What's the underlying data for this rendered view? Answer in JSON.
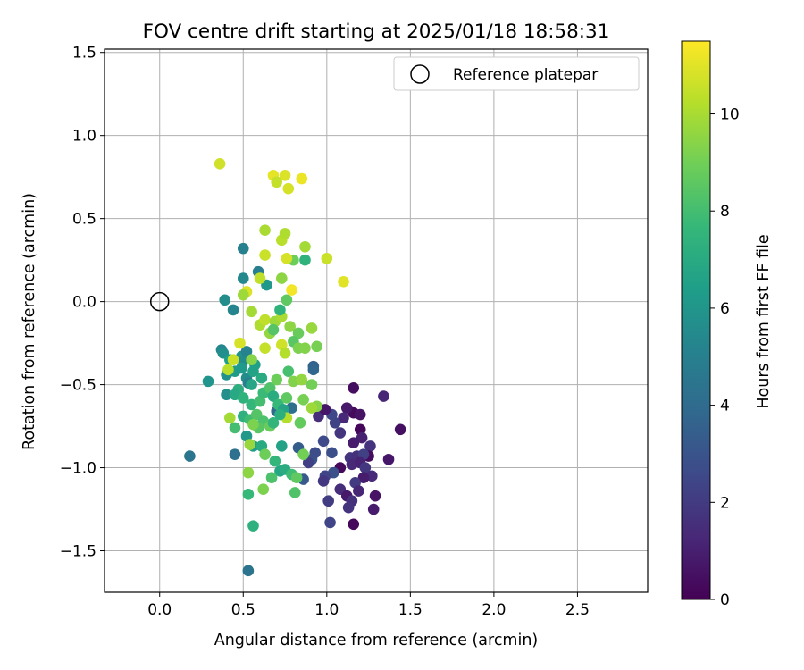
{
  "chart_data": {
    "type": "scatter",
    "title": "FOV centre drift starting at 2025/01/18 18:58:31",
    "xlabel": "Angular distance from reference (arcmin)",
    "ylabel": "Rotation from reference (arcmin)",
    "xlim": [
      -0.33,
      2.92
    ],
    "ylim": [
      -1.75,
      1.52
    ],
    "xticks": [
      0.0,
      0.5,
      1.0,
      1.5,
      2.0,
      2.5
    ],
    "xtick_labels": [
      "0.0",
      "0.5",
      "1.0",
      "1.5",
      "2.0",
      "2.5"
    ],
    "yticks": [
      -1.5,
      -1.0,
      -0.5,
      0.0,
      0.5,
      1.0,
      1.5
    ],
    "ytick_labels": [
      "−1.5",
      "−1.0",
      "−0.5",
      "0.0",
      "0.5",
      "1.0",
      "1.5"
    ],
    "grid": true,
    "legend": {
      "location": "upper right",
      "entries": [
        "Reference platepar"
      ]
    },
    "reference_point": {
      "x": 0.0,
      "y": 0.0,
      "label": "Reference platepar",
      "marker": "open circle"
    },
    "colorbar": {
      "label": "Hours from first FF file",
      "range": [
        0,
        11.5
      ],
      "ticks": [
        0,
        2,
        4,
        6,
        8,
        10
      ],
      "tick_labels": [
        "0",
        "2",
        "4",
        "6",
        "8",
        "10"
      ],
      "colormap": "viridis"
    },
    "points": [
      {
        "x": 1.16,
        "y": -0.52,
        "h": 0.4
      },
      {
        "x": 1.34,
        "y": -0.57,
        "h": 1.2
      },
      {
        "x": 1.44,
        "y": -0.77,
        "h": 0.5
      },
      {
        "x": 1.37,
        "y": -0.95,
        "h": 0.7
      },
      {
        "x": 1.16,
        "y": -0.67,
        "h": 0.3
      },
      {
        "x": 1.2,
        "y": -0.68,
        "h": 0.6
      },
      {
        "x": 1.12,
        "y": -0.64,
        "h": 0.8
      },
      {
        "x": 1.2,
        "y": -0.77,
        "h": 0.2
      },
      {
        "x": 1.21,
        "y": -0.82,
        "h": 1.0
      },
      {
        "x": 1.16,
        "y": -0.85,
        "h": 0.9
      },
      {
        "x": 1.26,
        "y": -0.87,
        "h": 1.7
      },
      {
        "x": 1.25,
        "y": -0.93,
        "h": 0.4
      },
      {
        "x": 1.14,
        "y": -0.94,
        "h": 1.8
      },
      {
        "x": 1.18,
        "y": -0.93,
        "h": 1.6
      },
      {
        "x": 1.22,
        "y": -0.92,
        "h": 2.2
      },
      {
        "x": 1.15,
        "y": -0.98,
        "h": 1.3
      },
      {
        "x": 1.2,
        "y": -0.97,
        "h": 1.1
      },
      {
        "x": 1.23,
        "y": -1.0,
        "h": 1.9
      },
      {
        "x": 1.08,
        "y": -1.0,
        "h": 0.3
      },
      {
        "x": 1.27,
        "y": -1.05,
        "h": 1.4
      },
      {
        "x": 1.22,
        "y": -1.06,
        "h": 0.9
      },
      {
        "x": 1.17,
        "y": -1.09,
        "h": 2.0
      },
      {
        "x": 1.08,
        "y": -1.13,
        "h": 1.5
      },
      {
        "x": 1.19,
        "y": -1.14,
        "h": 1.2
      },
      {
        "x": 1.12,
        "y": -1.17,
        "h": 0.8
      },
      {
        "x": 1.29,
        "y": -1.17,
        "h": 0.6
      },
      {
        "x": 1.15,
        "y": -1.2,
        "h": 1.6
      },
      {
        "x": 1.01,
        "y": -1.2,
        "h": 2.1
      },
      {
        "x": 1.13,
        "y": -1.24,
        "h": 1.7
      },
      {
        "x": 1.28,
        "y": -1.25,
        "h": 0.9
      },
      {
        "x": 1.16,
        "y": -1.34,
        "h": 0.2
      },
      {
        "x": 1.02,
        "y": -1.33,
        "h": 2.4
      },
      {
        "x": 1.1,
        "y": -0.7,
        "h": 1.3
      },
      {
        "x": 1.05,
        "y": -0.73,
        "h": 2.3
      },
      {
        "x": 1.03,
        "y": -0.68,
        "h": 2.5
      },
      {
        "x": 1.08,
        "y": -0.79,
        "h": 1.8
      },
      {
        "x": 0.95,
        "y": -0.69,
        "h": 1.5
      },
      {
        "x": 0.99,
        "y": -0.65,
        "h": 0.7
      },
      {
        "x": 0.98,
        "y": -0.84,
        "h": 2.6
      },
      {
        "x": 1.03,
        "y": -0.91,
        "h": 2.8
      },
      {
        "x": 0.91,
        "y": -0.95,
        "h": 3.0
      },
      {
        "x": 0.89,
        "y": -0.97,
        "h": 2.2
      },
      {
        "x": 1.04,
        "y": -1.03,
        "h": 2.9
      },
      {
        "x": 0.99,
        "y": -1.05,
        "h": 2.4
      },
      {
        "x": 0.98,
        "y": -1.08,
        "h": 1.9
      },
      {
        "x": 0.86,
        "y": -1.07,
        "h": 3.2
      },
      {
        "x": 0.83,
        "y": -0.88,
        "h": 3.4
      },
      {
        "x": 0.93,
        "y": -0.91,
        "h": 2.7
      },
      {
        "x": 0.92,
        "y": -0.39,
        "h": 3.6
      },
      {
        "x": 0.92,
        "y": -0.41,
        "h": 3.8
      },
      {
        "x": 0.79,
        "y": -0.64,
        "h": 4.2
      },
      {
        "x": 0.7,
        "y": -0.66,
        "h": 3.9
      },
      {
        "x": 0.18,
        "y": -0.93,
        "h": 4.5
      },
      {
        "x": 0.53,
        "y": -1.62,
        "h": 4.4
      },
      {
        "x": 0.45,
        "y": -0.92,
        "h": 4.3
      },
      {
        "x": 0.5,
        "y": 0.32,
        "h": 5.0
      },
      {
        "x": 0.5,
        "y": 0.14,
        "h": 5.4
      },
      {
        "x": 0.59,
        "y": 0.18,
        "h": 4.9
      },
      {
        "x": 0.64,
        "y": 0.1,
        "h": 6.1
      },
      {
        "x": 0.39,
        "y": 0.01,
        "h": 5.6
      },
      {
        "x": 0.44,
        "y": -0.05,
        "h": 5.2
      },
      {
        "x": 0.37,
        "y": -0.29,
        "h": 5.3
      },
      {
        "x": 0.38,
        "y": -0.31,
        "h": 5.7
      },
      {
        "x": 0.42,
        "y": -0.35,
        "h": 6.4
      },
      {
        "x": 0.49,
        "y": -0.33,
        "h": 5.9
      },
      {
        "x": 0.5,
        "y": -0.36,
        "h": 5.5
      },
      {
        "x": 0.52,
        "y": -0.3,
        "h": 5.1
      },
      {
        "x": 0.29,
        "y": -0.48,
        "h": 6.0
      },
      {
        "x": 0.4,
        "y": -0.44,
        "h": 5.8
      },
      {
        "x": 0.45,
        "y": -0.42,
        "h": 6.3
      },
      {
        "x": 0.49,
        "y": -0.4,
        "h": 6.2
      },
      {
        "x": 0.52,
        "y": -0.46,
        "h": 5.6
      },
      {
        "x": 0.53,
        "y": -0.49,
        "h": 5.0
      },
      {
        "x": 0.56,
        "y": -0.42,
        "h": 6.6
      },
      {
        "x": 0.55,
        "y": -0.5,
        "h": 6.8
      },
      {
        "x": 0.61,
        "y": -0.46,
        "h": 7.0
      },
      {
        "x": 0.57,
        "y": -0.38,
        "h": 6.5
      },
      {
        "x": 0.47,
        "y": -0.53,
        "h": 7.2
      },
      {
        "x": 0.4,
        "y": -0.56,
        "h": 5.7
      },
      {
        "x": 0.45,
        "y": -0.56,
        "h": 6.9
      },
      {
        "x": 0.5,
        "y": -0.58,
        "h": 7.4
      },
      {
        "x": 0.55,
        "y": -0.62,
        "h": 7.6
      },
      {
        "x": 0.6,
        "y": -0.6,
        "h": 8.0
      },
      {
        "x": 0.62,
        "y": -0.55,
        "h": 7.8
      },
      {
        "x": 0.66,
        "y": -0.52,
        "h": 8.3
      },
      {
        "x": 0.68,
        "y": -0.57,
        "h": 7.1
      },
      {
        "x": 0.71,
        "y": -0.62,
        "h": 7.7
      },
      {
        "x": 0.74,
        "y": -0.65,
        "h": 6.7
      },
      {
        "x": 0.76,
        "y": -0.58,
        "h": 8.6
      },
      {
        "x": 0.7,
        "y": -0.47,
        "h": 8.9
      },
      {
        "x": 0.77,
        "y": -0.42,
        "h": 8.1
      },
      {
        "x": 0.8,
        "y": -0.48,
        "h": 9.3
      },
      {
        "x": 0.85,
        "y": -0.47,
        "h": 9.6
      },
      {
        "x": 0.91,
        "y": -0.5,
        "h": 9.0
      },
      {
        "x": 0.94,
        "y": -0.63,
        "h": 9.4
      },
      {
        "x": 0.91,
        "y": -0.64,
        "h": 9.8
      },
      {
        "x": 0.86,
        "y": -0.59,
        "h": 9.1
      },
      {
        "x": 0.84,
        "y": -0.73,
        "h": 8.7
      },
      {
        "x": 0.76,
        "y": -0.7,
        "h": 10.2
      },
      {
        "x": 0.5,
        "y": -0.69,
        "h": 7.3
      },
      {
        "x": 0.54,
        "y": -0.71,
        "h": 7.9
      },
      {
        "x": 0.58,
        "y": -0.68,
        "h": 8.4
      },
      {
        "x": 0.62,
        "y": -0.72,
        "h": 8.2
      },
      {
        "x": 0.66,
        "y": -0.75,
        "h": 8.8
      },
      {
        "x": 0.68,
        "y": -0.73,
        "h": 7.5
      },
      {
        "x": 0.72,
        "y": -0.68,
        "h": 7.2
      },
      {
        "x": 0.59,
        "y": -0.76,
        "h": 8.5
      },
      {
        "x": 0.56,
        "y": -0.74,
        "h": 9.2
      },
      {
        "x": 0.52,
        "y": -0.81,
        "h": 6.1
      },
      {
        "x": 0.56,
        "y": -0.87,
        "h": 6.4
      },
      {
        "x": 0.61,
        "y": -0.87,
        "h": 7.0
      },
      {
        "x": 0.63,
        "y": -0.92,
        "h": 8.9
      },
      {
        "x": 0.73,
        "y": -0.87,
        "h": 6.6
      },
      {
        "x": 0.69,
        "y": -0.96,
        "h": 7.6
      },
      {
        "x": 0.72,
        "y": -1.02,
        "h": 6.8
      },
      {
        "x": 0.75,
        "y": -1.01,
        "h": 7.1
      },
      {
        "x": 0.79,
        "y": -1.04,
        "h": 7.9
      },
      {
        "x": 0.82,
        "y": -1.06,
        "h": 8.6
      },
      {
        "x": 0.86,
        "y": -0.92,
        "h": 9.0
      },
      {
        "x": 0.67,
        "y": -1.06,
        "h": 8.2
      },
      {
        "x": 0.53,
        "y": -1.03,
        "h": 9.5
      },
      {
        "x": 0.62,
        "y": -1.13,
        "h": 9.2
      },
      {
        "x": 0.53,
        "y": -1.16,
        "h": 7.7
      },
      {
        "x": 0.81,
        "y": -1.15,
        "h": 8.3
      },
      {
        "x": 0.56,
        "y": -1.35,
        "h": 7.3
      },
      {
        "x": 0.54,
        "y": -0.86,
        "h": 9.7
      },
      {
        "x": 0.45,
        "y": -0.76,
        "h": 8.0
      },
      {
        "x": 0.42,
        "y": -0.7,
        "h": 9.9
      },
      {
        "x": 0.41,
        "y": -0.41,
        "h": 10.3
      },
      {
        "x": 0.44,
        "y": -0.35,
        "h": 10.6
      },
      {
        "x": 0.48,
        "y": -0.25,
        "h": 10.8
      },
      {
        "x": 0.55,
        "y": -0.35,
        "h": 9.4
      },
      {
        "x": 0.63,
        "y": -0.28,
        "h": 10.5
      },
      {
        "x": 0.66,
        "y": -0.19,
        "h": 9.6
      },
      {
        "x": 0.6,
        "y": -0.14,
        "h": 10.1
      },
      {
        "x": 0.63,
        "y": -0.11,
        "h": 10.4
      },
      {
        "x": 0.69,
        "y": -0.12,
        "h": 9.8
      },
      {
        "x": 0.73,
        "y": -0.09,
        "h": 10.0
      },
      {
        "x": 0.68,
        "y": -0.17,
        "h": 8.4
      },
      {
        "x": 0.72,
        "y": -0.05,
        "h": 7.4
      },
      {
        "x": 0.78,
        "y": -0.15,
        "h": 9.5
      },
      {
        "x": 0.83,
        "y": -0.19,
        "h": 8.8
      },
      {
        "x": 0.8,
        "y": -0.24,
        "h": 8.5
      },
      {
        "x": 0.83,
        "y": -0.28,
        "h": 9.2
      },
      {
        "x": 0.87,
        "y": -0.28,
        "h": 9.3
      },
      {
        "x": 0.73,
        "y": -0.26,
        "h": 10.7
      },
      {
        "x": 0.75,
        "y": -0.31,
        "h": 10.2
      },
      {
        "x": 0.91,
        "y": -0.16,
        "h": 9.7
      },
      {
        "x": 0.94,
        "y": -0.27,
        "h": 9.1
      },
      {
        "x": 0.55,
        "y": -0.06,
        "h": 9.9
      },
      {
        "x": 0.76,
        "y": 0.01,
        "h": 8.6
      },
      {
        "x": 0.73,
        "y": 0.14,
        "h": 9.5
      },
      {
        "x": 0.79,
        "y": 0.07,
        "h": 11.3
      },
      {
        "x": 0.8,
        "y": 0.25,
        "h": 8.9
      },
      {
        "x": 0.87,
        "y": 0.25,
        "h": 7.4
      },
      {
        "x": 0.6,
        "y": 0.14,
        "h": 10.4
      },
      {
        "x": 0.52,
        "y": 0.06,
        "h": 10.9
      },
      {
        "x": 0.5,
        "y": 0.04,
        "h": 9.8
      },
      {
        "x": 0.63,
        "y": 0.28,
        "h": 10.6
      },
      {
        "x": 0.76,
        "y": 0.26,
        "h": 10.8
      },
      {
        "x": 0.73,
        "y": 0.37,
        "h": 10.3
      },
      {
        "x": 0.75,
        "y": 0.41,
        "h": 10.1
      },
      {
        "x": 0.63,
        "y": 0.43,
        "h": 10.0
      },
      {
        "x": 0.87,
        "y": 0.33,
        "h": 9.9
      },
      {
        "x": 1.0,
        "y": 0.26,
        "h": 10.6
      },
      {
        "x": 1.1,
        "y": 0.12,
        "h": 11.0
      },
      {
        "x": 0.36,
        "y": 0.83,
        "h": 10.7
      },
      {
        "x": 0.68,
        "y": 0.76,
        "h": 11.1
      },
      {
        "x": 0.75,
        "y": 0.76,
        "h": 10.9
      },
      {
        "x": 0.7,
        "y": 0.72,
        "h": 10.5
      },
      {
        "x": 0.77,
        "y": 0.68,
        "h": 10.8
      },
      {
        "x": 0.85,
        "y": 0.74,
        "h": 11.2
      }
    ]
  }
}
